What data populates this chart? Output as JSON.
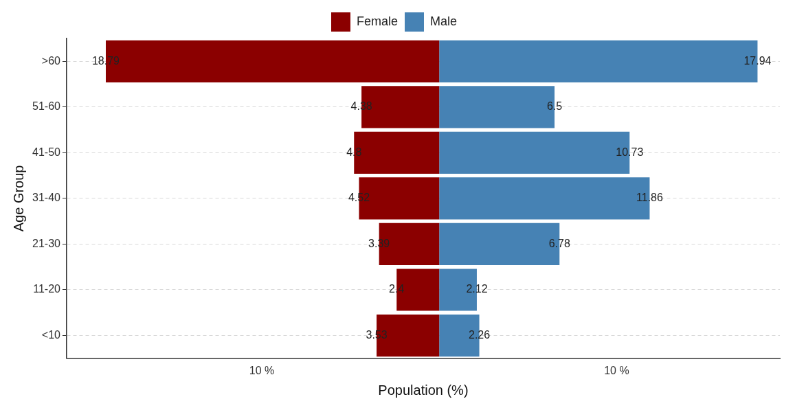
{
  "chart_data": {
    "type": "bar",
    "orientation": "horizontal",
    "xlabel": "Population (%)",
    "ylabel": "Age Group",
    "categories": [
      ">60",
      "51-60",
      "41-50",
      "31-40",
      "21-30",
      "11-20",
      "<10"
    ],
    "series": [
      {
        "name": "Female",
        "color": "#8b0000",
        "values": [
          18.79,
          4.38,
          4.8,
          4.52,
          3.39,
          2.4,
          3.53
        ],
        "base": [
          -18.79,
          -4.38,
          -4.8,
          -4.52,
          -3.39,
          -2.4,
          -3.53
        ]
      },
      {
        "name": "Male",
        "color": "#4682b4",
        "values": [
          17.94,
          6.5,
          10.73,
          11.86,
          6.78,
          2.12,
          2.26
        ]
      }
    ],
    "xlim": [
      -21,
      19.2
    ],
    "xticks": [
      {
        "value": -10,
        "label": "10 %"
      },
      {
        "value": 10,
        "label": "10 %"
      }
    ],
    "data_labels": true,
    "grid": "y",
    "legend": "top"
  }
}
